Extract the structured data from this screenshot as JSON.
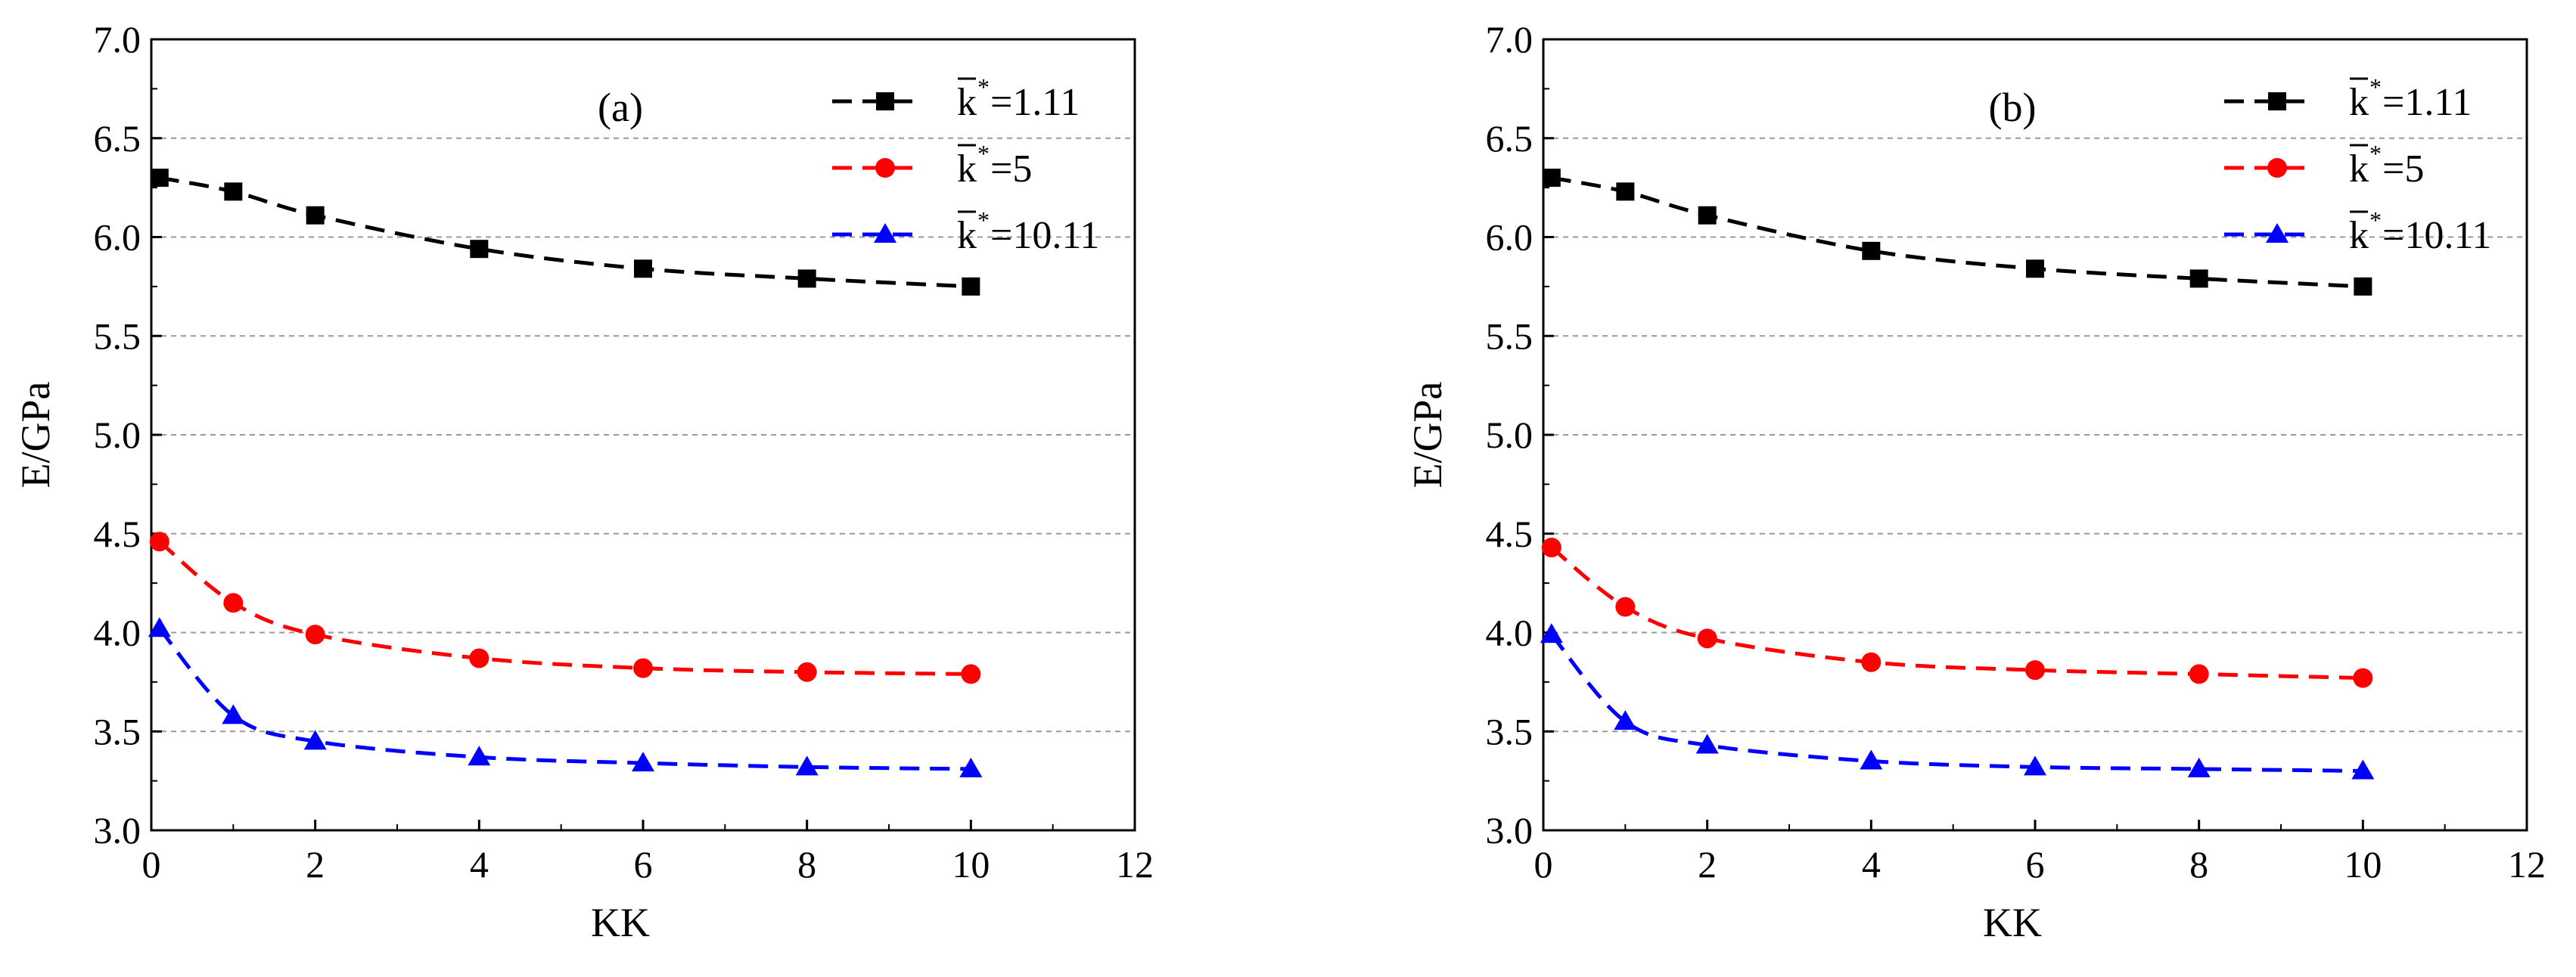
{
  "chart_data": [
    {
      "type": "line",
      "panel_label": "(a)",
      "xlabel": "KK",
      "ylabel": "E/GPa",
      "xlim": [
        0,
        12
      ],
      "ylim": [
        3.0,
        7.0
      ],
      "xticks": [
        "0",
        "2",
        "4",
        "6",
        "8",
        "10",
        "12"
      ],
      "yticks": [
        "3.0",
        "3.5",
        "4.0",
        "4.5",
        "5.0",
        "5.5",
        "6.0",
        "6.5",
        "7.0"
      ],
      "grid": "horizontal-dashed",
      "legend_position": "top-right",
      "x": [
        0.1,
        1,
        2,
        4,
        6,
        8,
        10
      ],
      "series": [
        {
          "name": "k*=1.11",
          "legend_base": "k",
          "legend_sup": "*",
          "legend_value": "=1.11",
          "marker": "square",
          "color": "#000000",
          "values": [
            6.3,
            6.23,
            6.11,
            5.94,
            5.84,
            5.79,
            5.75
          ]
        },
        {
          "name": "k*=5",
          "legend_base": "k",
          "legend_sup": "*",
          "legend_value": "=5",
          "marker": "circle",
          "color": "#ff0000",
          "values": [
            4.46,
            4.15,
            3.99,
            3.87,
            3.82,
            3.8,
            3.79
          ]
        },
        {
          "name": "k*=10.11",
          "legend_base": "k",
          "legend_sup": "*",
          "legend_value": "=10.11",
          "marker": "triangle",
          "color": "#0000ff",
          "values": [
            4.02,
            3.58,
            3.45,
            3.37,
            3.34,
            3.32,
            3.31
          ]
        }
      ]
    },
    {
      "type": "line",
      "panel_label": "(b)",
      "xlabel": "KK",
      "ylabel": "E/GPa",
      "xlim": [
        0,
        12
      ],
      "ylim": [
        3.0,
        7.0
      ],
      "xticks": [
        "0",
        "2",
        "4",
        "6",
        "8",
        "10",
        "12"
      ],
      "yticks": [
        "3.0",
        "3.5",
        "4.0",
        "4.5",
        "5.0",
        "5.5",
        "6.0",
        "6.5",
        "7.0"
      ],
      "grid": "horizontal-dashed",
      "legend_position": "top-right",
      "x": [
        0.1,
        1,
        2,
        4,
        6,
        8,
        10
      ],
      "series": [
        {
          "name": "k*=1.11",
          "legend_base": "k",
          "legend_sup": "*",
          "legend_value": "=1.11",
          "marker": "square",
          "color": "#000000",
          "values": [
            6.3,
            6.23,
            6.11,
            5.93,
            5.84,
            5.79,
            5.75
          ]
        },
        {
          "name": "k*=5",
          "legend_base": "k",
          "legend_sup": "*",
          "legend_value": "=5",
          "marker": "circle",
          "color": "#ff0000",
          "values": [
            4.43,
            4.13,
            3.97,
            3.85,
            3.81,
            3.79,
            3.77
          ]
        },
        {
          "name": "k*=10.11",
          "legend_base": "k",
          "legend_sup": "*",
          "legend_value": "=10.11",
          "marker": "triangle",
          "color": "#0000ff",
          "values": [
            3.99,
            3.55,
            3.43,
            3.35,
            3.32,
            3.31,
            3.3
          ]
        }
      ]
    }
  ]
}
